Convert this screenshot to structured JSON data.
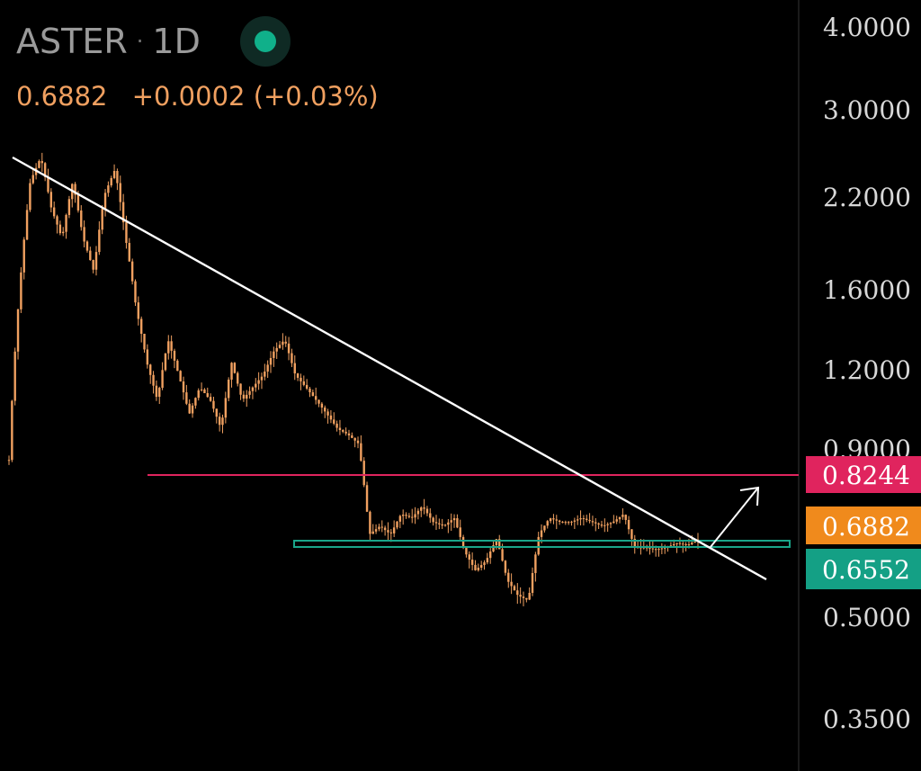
{
  "header": {
    "symbol": "ASTER",
    "separator": "·",
    "interval": "1D",
    "live_status_icon": "live-dot-icon",
    "last_price": "0.6882",
    "change": "+0.0002 (+0.03%)"
  },
  "colors": {
    "background": "#000000",
    "candles": "#f0a060",
    "trendline": "#ffffff",
    "resistance": "#e0245e",
    "support": "#1aa58a",
    "axis_text": "#d8d8d8"
  },
  "chart_data": {
    "type": "candlestick",
    "y_scale": "log",
    "ylim": [
      0.315,
      4.25
    ],
    "y_ticks": [
      "4.0000",
      "3.0000",
      "2.2000",
      "1.6000",
      "1.2000",
      "0.9000",
      "0.5000",
      "0.3500"
    ],
    "price_tags": [
      {
        "label": "0.8244",
        "value": 0.8244,
        "color": "#e0245e"
      },
      {
        "label": "0.6882",
        "value": 0.6882,
        "color": "#f08a1c"
      },
      {
        "label": "0.6552",
        "value": 0.6552,
        "color": "#14a085"
      }
    ],
    "annotations": {
      "resistance_level": 0.8244,
      "support_zone": [
        0.65,
        0.668
      ],
      "descending_trendline": "drawn from the all-time high through the lower highs, broken near the end",
      "breakout_arrow": "up"
    },
    "series": [
      {
        "name": "ASTER 1D",
        "close_path": [
          0.9,
          1.6,
          2.3,
          2.5,
          2.1,
          1.9,
          2.3,
          1.9,
          1.7,
          2.2,
          2.4,
          1.9,
          1.5,
          1.25,
          1.1,
          1.35,
          1.2,
          1.05,
          1.15,
          1.1,
          1.0,
          1.25,
          1.1,
          1.15,
          1.2,
          1.3,
          1.35,
          1.2,
          1.15,
          1.1,
          1.05,
          1.0,
          0.98,
          0.95,
          0.7,
          0.72,
          0.7,
          0.75,
          0.74,
          0.77,
          0.73,
          0.72,
          0.74,
          0.66,
          0.62,
          0.64,
          0.69,
          0.6,
          0.57,
          0.56,
          0.7,
          0.74,
          0.73,
          0.73,
          0.74,
          0.73,
          0.72,
          0.73,
          0.75,
          0.67,
          0.67,
          0.665,
          0.67,
          0.68,
          0.675,
          0.688
        ]
      }
    ]
  }
}
